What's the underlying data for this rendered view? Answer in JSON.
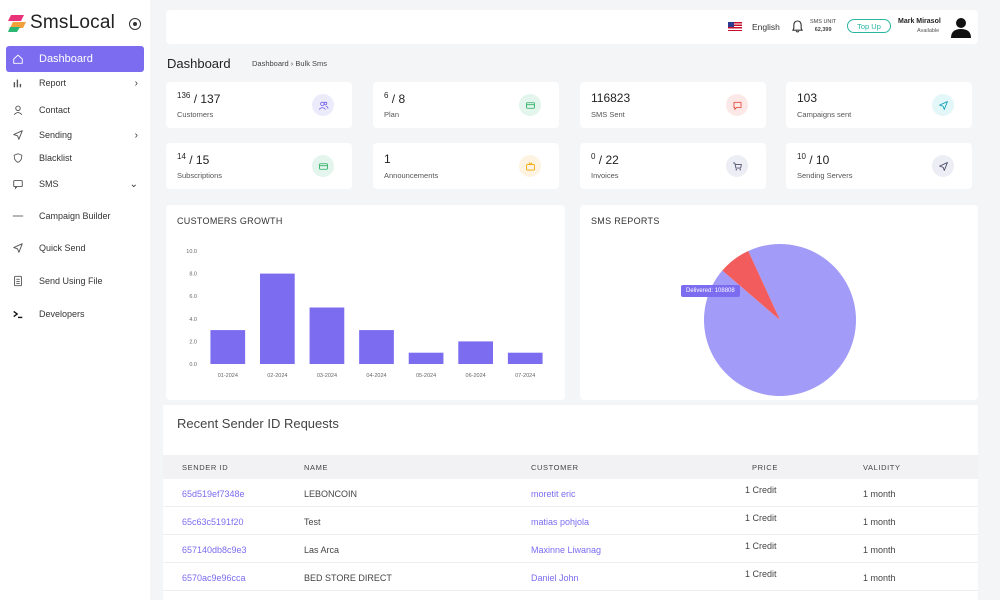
{
  "brand": {
    "name": "SmsLocal"
  },
  "sidebar": {
    "items": [
      {
        "label": "Dashboard",
        "icon": "home-icon",
        "chevron": ""
      },
      {
        "label": "Report",
        "icon": "bar-chart-icon",
        "chevron": "›"
      },
      {
        "label": "Contact",
        "icon": "user-icon",
        "chevron": ""
      },
      {
        "label": "Sending",
        "icon": "send-icon",
        "chevron": "›"
      },
      {
        "label": "Blacklist",
        "icon": "shield-icon",
        "chevron": ""
      },
      {
        "label": "SMS",
        "icon": "message-icon",
        "chevron": "⌄"
      },
      {
        "label": "Campaign Builder",
        "icon": "dash-icon",
        "chevron": ""
      },
      {
        "label": "Quick Send",
        "icon": "send-icon",
        "chevron": ""
      },
      {
        "label": "Send Using File",
        "icon": "file-icon",
        "chevron": ""
      },
      {
        "label": "Developers",
        "icon": "terminal-icon",
        "chevron": ""
      }
    ]
  },
  "topbar": {
    "language": "English",
    "sms_unit_label": "SMS UNIT",
    "sms_unit_value": "62,399",
    "topup_label": "Top Up",
    "user_name": "Mark Mirasol",
    "user_status": "Available"
  },
  "breadcrumb": {
    "title": "Dashboard",
    "path": "Dashboard  ›  Bulk Sms"
  },
  "stats": [
    {
      "sup": "136",
      "value": "/ 137",
      "label": "Customers",
      "icon": "users-icon",
      "bg": "#ecebfb",
      "fg": "#6c5ce7"
    },
    {
      "sup": "6",
      "value": "/ 8",
      "label": "Plan",
      "icon": "credit-card-icon",
      "bg": "#e3f5ec",
      "fg": "#27ae60"
    },
    {
      "sup": "",
      "value": "116823",
      "label": "SMS Sent",
      "icon": "message-square-icon",
      "bg": "#fde8e8",
      "fg": "#e74c3c"
    },
    {
      "sup": "",
      "value": "103",
      "label": "Campaigns sent",
      "icon": "send-icon",
      "bg": "#e3f6f8",
      "fg": "#17a2b8"
    },
    {
      "sup": "14",
      "value": "/ 15",
      "label": "Subscriptions",
      "icon": "credit-card-icon",
      "bg": "#e3f5ec",
      "fg": "#27ae60"
    },
    {
      "sup": "",
      "value": "1",
      "label": "Announcements",
      "icon": "tv-icon",
      "bg": "#fdf3e0",
      "fg": "#f0a500"
    },
    {
      "sup": "0",
      "value": "/ 22",
      "label": "Invoices",
      "icon": "cart-icon",
      "bg": "#ecedf5",
      "fg": "#4a4e69"
    },
    {
      "sup": "10",
      "value": "/ 10",
      "label": "Sending Servers",
      "icon": "send-icon",
      "bg": "#ecedf5",
      "fg": "#4a4e69"
    }
  ],
  "customers_growth": {
    "title": "CUSTOMERS GROWTH"
  },
  "sms_reports": {
    "title": "SMS REPORTS",
    "tooltip_label": "Delivered:",
    "tooltip_value": "108808"
  },
  "chart_data": [
    {
      "type": "bar",
      "title": "CUSTOMERS GROWTH",
      "categories": [
        "01-2024",
        "02-2024",
        "03-2024",
        "04-2024",
        "05-2024",
        "06-2024",
        "07-2024"
      ],
      "values": [
        3,
        8,
        5,
        3,
        1,
        2,
        1
      ],
      "ylim": [
        0,
        10
      ],
      "yticks": [
        "0.0",
        "2.0",
        "4.0",
        "6.0",
        "8.0",
        "10.0"
      ],
      "color": "#7b6cf0",
      "grid": false
    },
    {
      "type": "pie",
      "title": "SMS REPORTS",
      "slices": [
        {
          "name": "Delivered",
          "value": 108808,
          "color": "#a39bf8"
        },
        {
          "name": "",
          "value": 8015,
          "color": "#f25c5c"
        }
      ]
    }
  ],
  "table": {
    "title": "Recent Sender ID Requests",
    "headers": [
      "SENDER ID",
      "NAME",
      "CUSTOMER",
      "PRICE",
      "VALIDITY"
    ],
    "rows": [
      {
        "sender_id": "65d519ef7348e",
        "name": "LEBONCOIN",
        "customer": "moretit eric",
        "price": "1 Credit",
        "validity": "1 month"
      },
      {
        "sender_id": "65c63c5191f20",
        "name": "Test",
        "customer": "matias pohjola",
        "price": "1 Credit",
        "validity": "1 month"
      },
      {
        "sender_id": "657140db8c9e3",
        "name": "Las Arca",
        "customer": "Maxinne Liwanag",
        "price": "1 Credit",
        "validity": "1 month"
      },
      {
        "sender_id": "6570ac9e96cca",
        "name": "BED STORE DIRECT",
        "customer": "Daniel John",
        "price": "1 Credit",
        "validity": "1 month"
      }
    ]
  }
}
